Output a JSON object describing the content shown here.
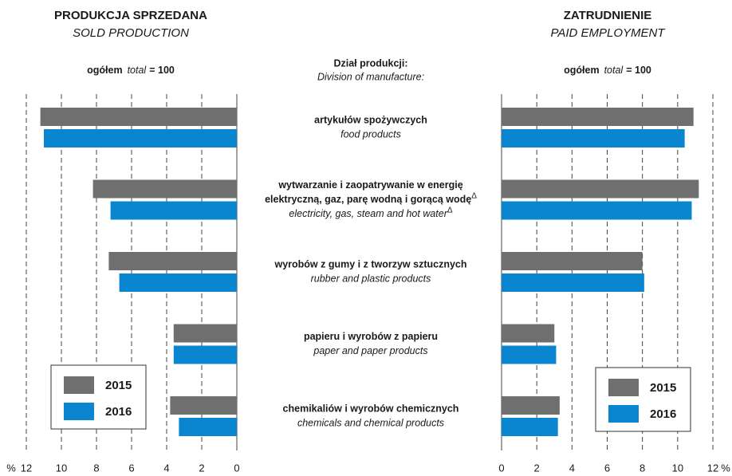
{
  "chart_data": {
    "type": "bar",
    "orientation": "horizontal",
    "division_header": {
      "pl": "Dział produkcji:",
      "en": "Division of manufacture:"
    },
    "categories": [
      {
        "pl": [
          "artykułów spożywczych"
        ],
        "en": "food products"
      },
      {
        "pl": [
          "wytwarzanie i zaopatrywanie w energię",
          "elektryczną, gaz, parę wodną i gorącą wodę"
        ],
        "en": "electricity, gas, steam and hot water",
        "mark": "Δ"
      },
      {
        "pl": [
          "wyrobów z gumy i z tworzyw sztucznych"
        ],
        "en": "rubber and plastic products"
      },
      {
        "pl": [
          "papieru i wyrobów z papieru"
        ],
        "en": "paper and paper products"
      },
      {
        "pl": [
          "chemikaliów i wyrobów chemicznych"
        ],
        "en": "chemicals and chemical products"
      }
    ],
    "unit": "%",
    "panels": [
      {
        "title": "PRODUKCJA SPRZEDANA",
        "subtitle": "SOLD PRODUCTION",
        "total_label": [
          "ogółem",
          "total",
          "= 100"
        ],
        "reversed": true,
        "xlim": [
          0,
          12
        ],
        "xticks": [
          0,
          2,
          4,
          6,
          8,
          10,
          12
        ],
        "grid": true,
        "legend": "lower left",
        "series": [
          {
            "name": "2015",
            "color": "#6f6f6f",
            "values": [
              11.2,
              8.2,
              7.3,
              3.6,
              3.8
            ]
          },
          {
            "name": "2016",
            "color": "#0a86d0",
            "values": [
              11.0,
              7.2,
              6.7,
              3.6,
              3.3
            ]
          }
        ]
      },
      {
        "title": "ZATRUDNIENIE",
        "subtitle": "PAID EMPLOYMENT",
        "total_label": [
          "ogółem",
          "total",
          "= 100"
        ],
        "reversed": false,
        "xlim": [
          0,
          12
        ],
        "xticks": [
          0,
          2,
          4,
          6,
          8,
          10,
          12
        ],
        "grid": true,
        "legend": "lower right",
        "series": [
          {
            "name": "2015",
            "color": "#6f6f6f",
            "values": [
              10.9,
              11.2,
              8.0,
              3.0,
              3.3
            ]
          },
          {
            "name": "2016",
            "color": "#0a86d0",
            "values": [
              10.4,
              10.8,
              8.1,
              3.1,
              3.2
            ]
          }
        ]
      }
    ]
  }
}
